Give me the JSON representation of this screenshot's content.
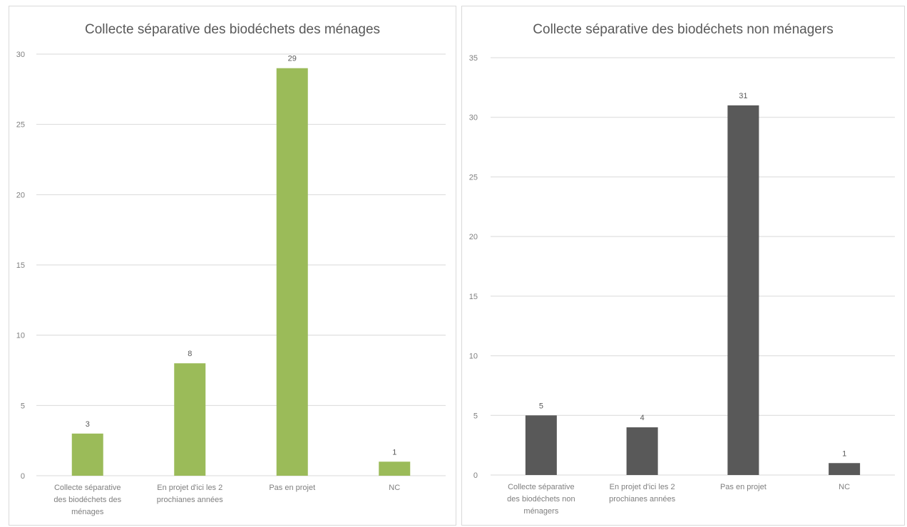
{
  "chart_data": [
    {
      "type": "bar",
      "title": "Collecte séparative des biodéchets des ménages",
      "xlabel": "",
      "ylabel": "",
      "categories": [
        [
          "Collecte séparative",
          "des biodéchets des",
          "ménages"
        ],
        [
          "En projet d'ici les 2",
          "prochianes années"
        ],
        [
          "Pas en projet"
        ],
        [
          "NC"
        ]
      ],
      "values": [
        3,
        8,
        29,
        1
      ],
      "ylim": [
        0,
        30
      ],
      "yticks": [
        "0",
        "5",
        "10",
        "15",
        "20",
        "25",
        "30"
      ],
      "grid": true,
      "legend": "none",
      "bar_color": "#9bbb59"
    },
    {
      "type": "bar",
      "title": "Collecte séparative des biodéchets non ménagers",
      "xlabel": "",
      "ylabel": "",
      "categories": [
        [
          "Collecte séparative",
          "des biodéchets non",
          "ménagers"
        ],
        [
          "En projet d'ici les 2",
          "prochianes années"
        ],
        [
          "Pas en projet"
        ],
        [
          "NC"
        ]
      ],
      "values": [
        5,
        4,
        31,
        1
      ],
      "ylim": [
        0,
        35
      ],
      "yticks": [
        "0",
        "5",
        "10",
        "15",
        "20",
        "25",
        "30",
        "35"
      ],
      "grid": true,
      "legend": "none",
      "bar_color": "#595959"
    }
  ]
}
